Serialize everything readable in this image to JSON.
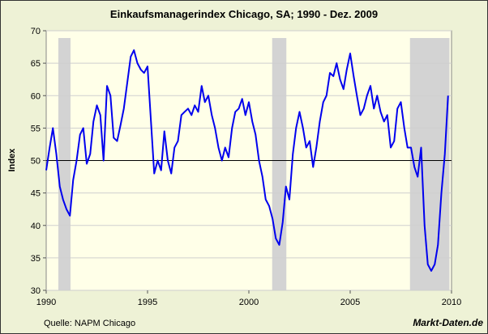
{
  "chart_data": {
    "type": "line",
    "title": "Einkaufsmanagerindex Chicago, SA; 1990 -  Dez. 2009",
    "y_label": "Index",
    "source": "Quelle: NAPM Chicago",
    "brand": "Markt-Daten.de",
    "x": [
      1990,
      1990.17,
      1990.33,
      1990.5,
      1990.67,
      1990.83,
      1991,
      1991.17,
      1991.33,
      1991.5,
      1991.67,
      1991.83,
      1992,
      1992.17,
      1992.33,
      1992.5,
      1992.67,
      1992.83,
      1993,
      1993.17,
      1993.33,
      1993.5,
      1993.67,
      1993.83,
      1994,
      1994.17,
      1994.33,
      1994.5,
      1994.67,
      1994.83,
      1995,
      1995.17,
      1995.33,
      1995.5,
      1995.67,
      1995.83,
      1996,
      1996.17,
      1996.33,
      1996.5,
      1996.67,
      1996.83,
      1997,
      1997.17,
      1997.33,
      1997.5,
      1997.67,
      1997.83,
      1998,
      1998.17,
      1998.33,
      1998.5,
      1998.67,
      1998.83,
      1999,
      1999.17,
      1999.33,
      1999.5,
      1999.67,
      1999.83,
      2000,
      2000.17,
      2000.33,
      2000.5,
      2000.67,
      2000.83,
      2001,
      2001.17,
      2001.33,
      2001.5,
      2001.67,
      2001.83,
      2002,
      2002.17,
      2002.33,
      2002.5,
      2002.67,
      2002.83,
      2003,
      2003.17,
      2003.33,
      2003.5,
      2003.67,
      2003.83,
      2004,
      2004.17,
      2004.33,
      2004.5,
      2004.67,
      2004.83,
      2005,
      2005.17,
      2005.33,
      2005.5,
      2005.67,
      2005.83,
      2006,
      2006.17,
      2006.33,
      2006.5,
      2006.67,
      2006.83,
      2007,
      2007.17,
      2007.33,
      2007.5,
      2007.67,
      2007.83,
      2008,
      2008.17,
      2008.33,
      2008.5,
      2008.67,
      2008.83,
      2009,
      2009.17,
      2009.33,
      2009.5,
      2009.67,
      2009.83
    ],
    "series": [
      {
        "color": "#0000ee",
        "values": [
          48.5,
          52,
          55,
          51,
          46,
          44,
          42.5,
          41.5,
          47,
          50,
          54,
          55,
          49.5,
          51,
          56,
          58.5,
          57,
          50,
          61.5,
          60,
          53.5,
          53,
          55.5,
          58,
          62,
          66,
          67,
          65,
          64,
          63.5,
          64.5,
          56,
          48,
          50,
          48.5,
          54.5,
          50,
          48,
          52,
          53,
          57,
          57.5,
          58,
          57,
          58.5,
          57.5,
          61.5,
          59,
          60,
          57,
          55,
          52,
          50,
          52,
          50.5,
          55,
          57.5,
          58,
          59.5,
          57,
          59,
          56,
          54,
          50,
          47.5,
          44,
          43,
          41,
          38,
          37,
          40.5,
          46,
          44,
          51,
          55,
          57.5,
          55,
          52,
          53,
          49,
          52,
          56,
          59,
          60,
          63.5,
          63,
          65,
          62.5,
          61,
          64,
          66.5,
          63,
          60,
          57,
          58,
          60,
          61.5,
          58,
          60,
          57.5,
          56,
          57,
          52,
          53,
          58,
          59,
          55,
          52,
          52,
          49,
          47.5,
          52,
          40,
          34,
          33,
          34,
          37,
          45,
          51,
          60
        ]
      }
    ],
    "recessions": [
      [
        1990.6,
        1991.2
      ],
      [
        2001.15,
        2001.85
      ],
      [
        2007.95,
        2009.9
      ]
    ],
    "reference_line": 50,
    "xlim": [
      1990,
      2010
    ],
    "xticks": [
      1990,
      1995,
      2000,
      2005,
      2010
    ],
    "ylim": [
      30,
      70
    ],
    "yticks": [
      30,
      35,
      40,
      45,
      50,
      55,
      60,
      65,
      70
    ],
    "grid": true
  }
}
